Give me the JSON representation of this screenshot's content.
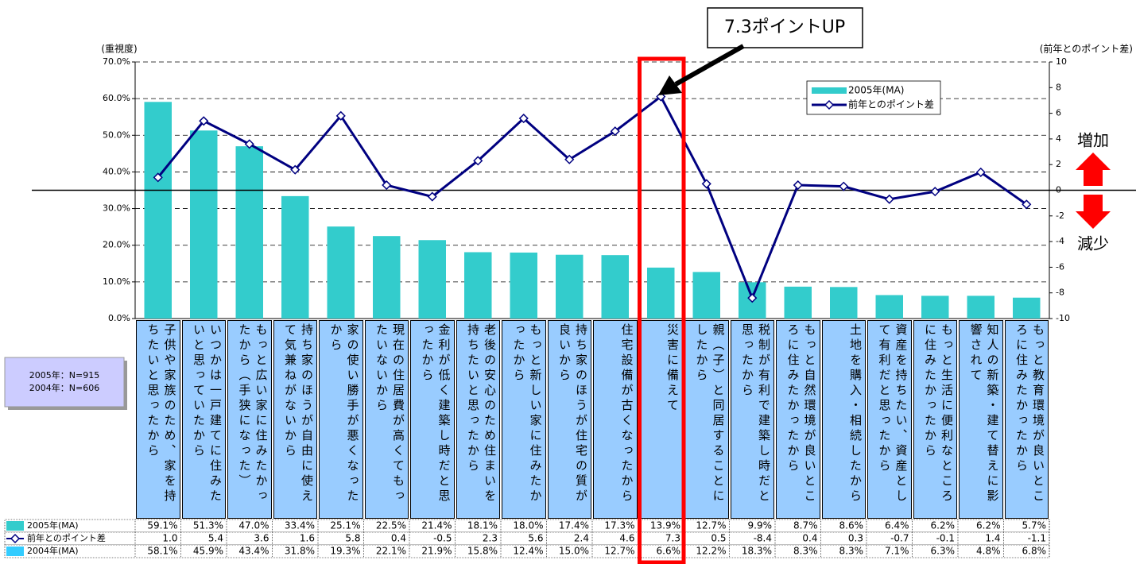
{
  "chart_data": {
    "type": "combo",
    "y_label": "(重視度)",
    "y2_label": "(前年とのポイント差)",
    "categories": [
      "子供や家族のため、家を持ちたいと思ったから",
      "いつかは一戸建てに住みたいと思っていたから",
      "もっと広い家に住みたかったから（手狭になった）",
      "持ち家のほうが自由に使えて気兼ねがないから",
      "家の使い勝手が悪くなったから",
      "現在の住居費が高くてもったいないから",
      "金利が低く建築し時だと思ったから",
      "老後の安心のため住まいを持ちたいと思ったから",
      "もっと新しい家に住みたかったから",
      "持ち家のほうが住宅の質が良いから",
      "住宅設備が古くなったから",
      "災害に備えて",
      "親（子）と同居することにしたから",
      "税制が有利で建築し時だと思ったから",
      "もっと自然環境が良いところに住みたかったから",
      "土地を購入・相続したから",
      "資産を持ちたい、資産として有利だと思ったから",
      "もっと生活に便利なところに住みたかったから",
      "知人の新築・建て替えに影響されて",
      "もっと教育環境が良いところに住みたかったから"
    ],
    "series": [
      {
        "name": "2005年(MA)",
        "type": "bar",
        "color": "#33cccc",
        "values": [
          59.1,
          51.3,
          47.0,
          33.4,
          25.1,
          22.5,
          21.4,
          18.1,
          18.0,
          17.4,
          17.3,
          13.9,
          12.7,
          9.9,
          8.7,
          8.6,
          6.4,
          6.2,
          6.2,
          5.7
        ],
        "value_labels": [
          "59.1%",
          "51.3%",
          "47.0%",
          "33.4%",
          "25.1%",
          "22.5%",
          "21.4%",
          "18.1%",
          "18.0%",
          "17.4%",
          "17.3%",
          "13.9%",
          "12.7%",
          "9.9%",
          "8.7%",
          "8.6%",
          "6.4%",
          "6.2%",
          "6.2%",
          "5.7%"
        ]
      },
      {
        "name": "前年とのポイント差",
        "type": "line",
        "axis": "y2",
        "color": "#000080",
        "values": [
          1.0,
          5.4,
          3.6,
          1.6,
          5.8,
          0.4,
          -0.5,
          2.3,
          5.6,
          2.4,
          4.6,
          7.3,
          0.5,
          -8.4,
          0.4,
          0.3,
          -0.7,
          -0.1,
          1.4,
          -1.1
        ],
        "value_labels": [
          "1.0",
          "5.4",
          "3.6",
          "1.6",
          "5.8",
          "0.4",
          "-0.5",
          "2.3",
          "5.6",
          "2.4",
          "4.6",
          "7.3",
          "0.5",
          "-8.4",
          "0.4",
          "0.3",
          "-0.7",
          "-0.1",
          "1.4",
          "-1.1"
        ]
      },
      {
        "name": "2004年(MA)",
        "type": "table",
        "color": "#33ccff",
        "values": [
          58.1,
          45.9,
          43.4,
          31.8,
          19.3,
          22.1,
          21.9,
          15.8,
          12.4,
          15.0,
          12.7,
          6.6,
          12.2,
          18.3,
          8.3,
          8.3,
          7.1,
          6.3,
          4.8,
          6.8
        ],
        "value_labels": [
          "58.1%",
          "45.9%",
          "43.4%",
          "31.8%",
          "19.3%",
          "22.1%",
          "21.9%",
          "15.8%",
          "12.4%",
          "15.0%",
          "12.7%",
          "6.6%",
          "12.2%",
          "18.3%",
          "8.3%",
          "8.3%",
          "7.1%",
          "6.3%",
          "4.8%",
          "6.8%"
        ]
      }
    ],
    "ylim": [
      0,
      70
    ],
    "yticks": [
      {
        "value": 0,
        "label": "0.0%"
      },
      {
        "value": 10,
        "label": "10.0%"
      },
      {
        "value": 20,
        "label": "20.0%"
      },
      {
        "value": 30,
        "label": "30.0%"
      },
      {
        "value": 40,
        "label": "40.0%"
      },
      {
        "value": 50,
        "label": "50.0%"
      },
      {
        "value": 60,
        "label": "60.0%"
      },
      {
        "value": 70,
        "label": "70.0%"
      }
    ],
    "y2lim": [
      -10,
      10
    ],
    "y2ticks": [
      -10,
      -8,
      -6,
      -4,
      -2,
      0,
      2,
      4,
      6,
      8,
      10
    ],
    "grid": true,
    "legend": "top-right",
    "annotations": {
      "callout": "7.3ポイントUP",
      "increase": "増加",
      "decrease": "減少",
      "notes": [
        "2005年：N=915",
        "2004年：N=606"
      ]
    }
  }
}
